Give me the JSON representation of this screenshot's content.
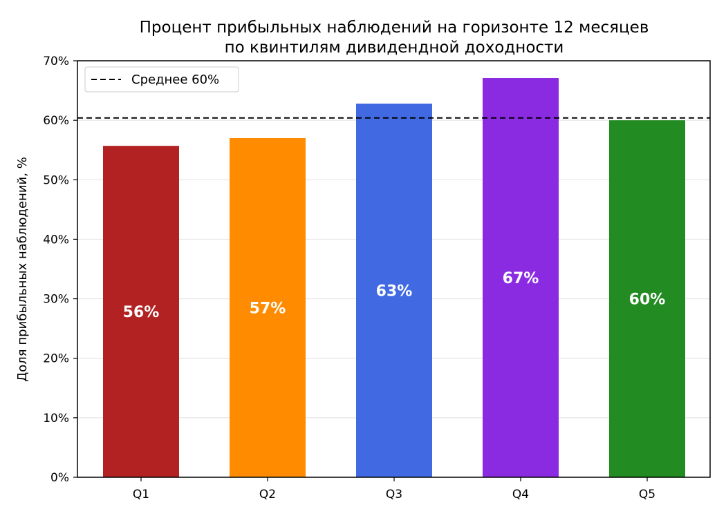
{
  "chart_data": {
    "type": "bar",
    "title_line1": "Процент прибыльных наблюдений на горизонте 12 месяцев",
    "title_line2": "по квинтилям дивидендной доходности",
    "xlabel": "",
    "ylabel": "Доля прибыльных наблюдений, %",
    "categories": [
      "Q1",
      "Q2",
      "Q3",
      "Q4",
      "Q5"
    ],
    "values": [
      55.7,
      57.0,
      62.8,
      67.1,
      60.0
    ],
    "value_labels": [
      "56%",
      "57%",
      "63%",
      "67%",
      "60%"
    ],
    "colors": [
      "#b22222",
      "#ff8c00",
      "#4169e1",
      "#8a2be2",
      "#228b22"
    ],
    "ylim": [
      0,
      70
    ],
    "yticks": [
      0,
      10,
      20,
      30,
      40,
      50,
      60,
      70
    ],
    "ytick_labels": [
      "0%",
      "10%",
      "20%",
      "30%",
      "40%",
      "50%",
      "60%",
      "70%"
    ],
    "reference_line": {
      "value": 60.4,
      "label": "Среднее 60%",
      "style": "dashed",
      "color": "#000000"
    },
    "legend_position": "top-left",
    "grid": {
      "y": true,
      "x": false
    }
  }
}
